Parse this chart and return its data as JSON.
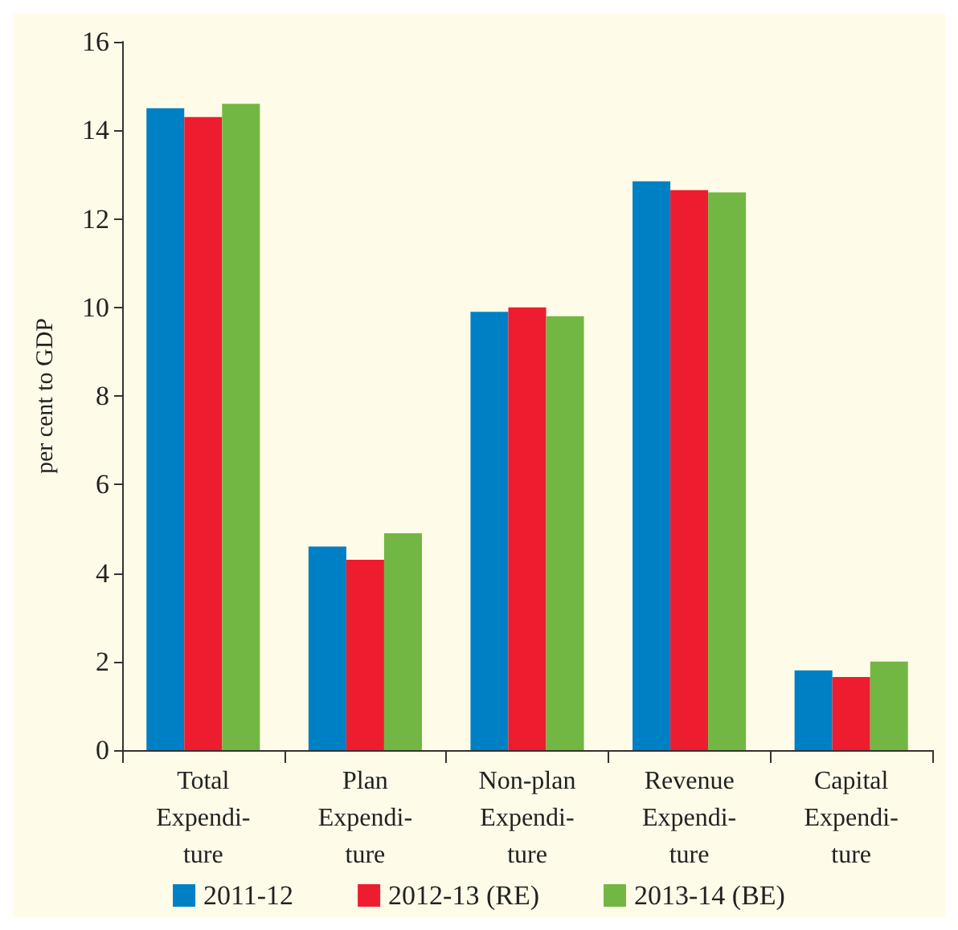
{
  "chart_data": {
    "type": "bar",
    "ylabel": "per cent to GDP",
    "categories": [
      "Total\nExpendi-\nture",
      "Plan\nExpendi-\nture",
      "Non-plan\nExpendi-\nture",
      "Revenue\nExpendi-\nture",
      "Capital\nExpendi-\nture"
    ],
    "series": [
      {
        "name": "2011-12",
        "color": "#0080c4",
        "values": [
          14.5,
          4.6,
          9.9,
          12.85,
          1.8
        ]
      },
      {
        "name": "2012-13 (RE)",
        "color": "#ed1c2e",
        "values": [
          14.3,
          4.3,
          10.0,
          12.65,
          1.65
        ]
      },
      {
        "name": "2013-14 (BE)",
        "color": "#72b743",
        "values": [
          14.6,
          4.9,
          9.8,
          12.6,
          2.0
        ]
      }
    ],
    "ylim": [
      0,
      16
    ],
    "yticks": [
      0,
      2,
      4,
      6,
      8,
      10,
      12,
      14,
      16
    ],
    "grid": false,
    "legend": "bottom"
  }
}
